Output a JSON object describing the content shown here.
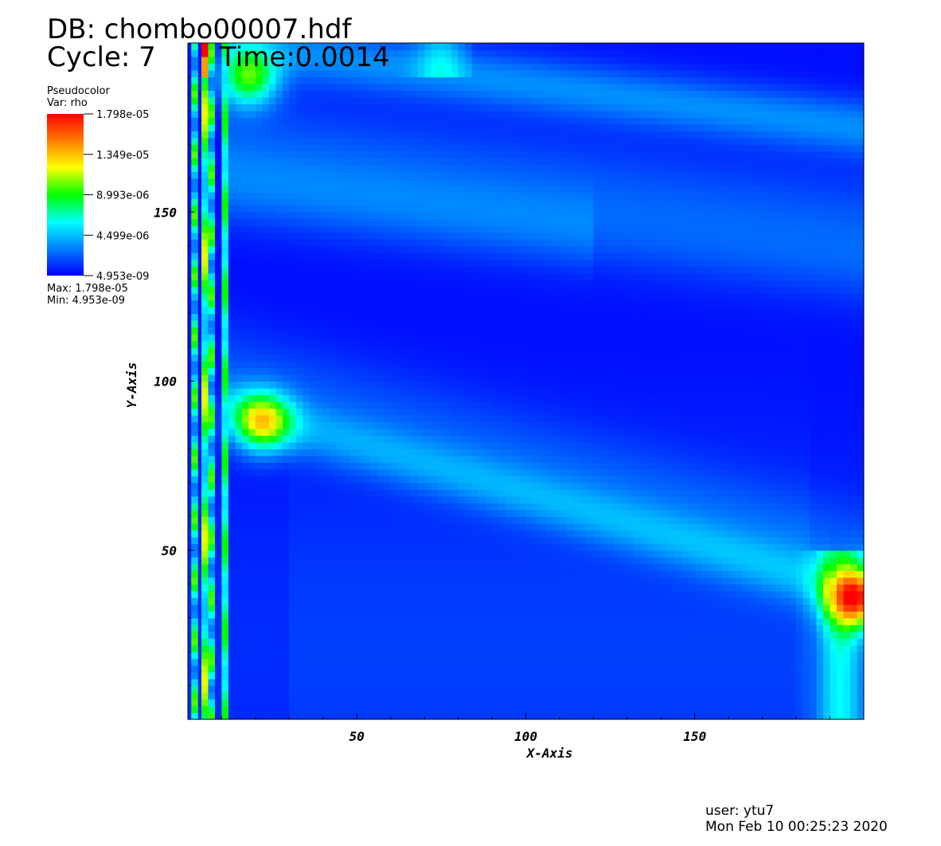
{
  "header": {
    "db_label": "DB: chombo00007.hdf",
    "cycle_label": "Cycle: 7",
    "time_label": "Time:0.0014"
  },
  "legend": {
    "plot_type": "Pseudocolor",
    "var_label": "Var: rho",
    "ticks": [
      "1.798e-05",
      "1.349e-05",
      "8.993e-06",
      "4.499e-06",
      "4.953e-09"
    ],
    "max_label": "Max:  1.798e-05",
    "min_label": "Min:  4.953e-09",
    "colormap": [
      "#0000ff",
      "#0080ff",
      "#00ffff",
      "#00ff00",
      "#ffff00",
      "#ff8000",
      "#ff0000"
    ]
  },
  "footer": {
    "user": "user: ytu7",
    "timestamp": "Mon Feb 10 00:25:23 2020"
  },
  "chart_data": {
    "type": "heatmap",
    "variable": "rho",
    "xlabel": "X-Axis",
    "ylabel": "Y-Axis",
    "xlim": [
      0,
      200
    ],
    "ylim": [
      0,
      200
    ],
    "xticks": [
      50,
      100,
      150
    ],
    "yticks": [
      50,
      100,
      150
    ],
    "vmin": 4.953e-09,
    "vmax": 1.798e-05,
    "features": [
      {
        "kind": "upper_band",
        "from": [
          10,
          200
        ],
        "to": [
          200,
          175
        ],
        "peak": 5e-06
      },
      {
        "kind": "lower_band",
        "from": [
          10,
          93
        ],
        "to": [
          190,
          40
        ],
        "peak": 5.5e-06
      },
      {
        "kind": "hot_spot",
        "at": [
          22,
          88
        ],
        "peak": 1e-05
      },
      {
        "kind": "hot_spot",
        "at": [
          198,
          36
        ],
        "peak": 1.3e-05
      },
      {
        "kind": "hot_spot",
        "at": [
          18,
          190
        ],
        "peak": 8.5e-06
      },
      {
        "kind": "vertical_stripes",
        "x": [
          2,
          5,
          7,
          11
        ],
        "peak": 1.798e-05
      }
    ]
  }
}
